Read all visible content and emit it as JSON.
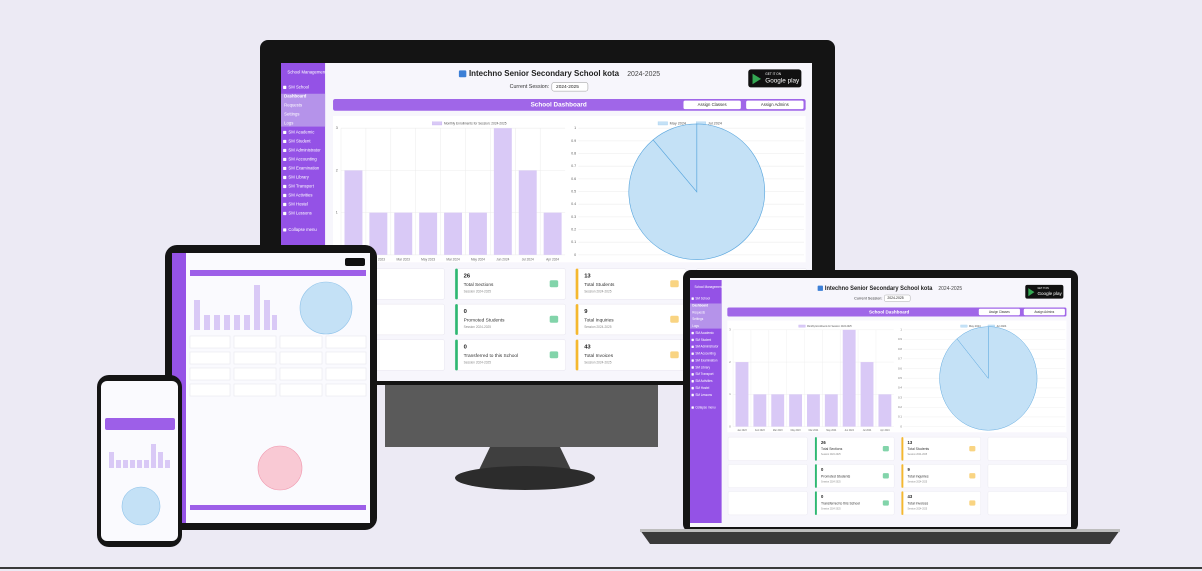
{
  "sidebar": {
    "brand": "School Management",
    "items": [
      "SM School",
      "Dashboard",
      "Requests",
      "Settings",
      "Logs",
      "SM Academic",
      "SM Student",
      "SM Administrator",
      "SM Accounting",
      "SM Examination",
      "SM Library",
      "SM Transport",
      "SM Activities",
      "SM Hostel",
      "SM Lessons",
      "Collapse menu"
    ]
  },
  "header": {
    "title": "Intechno Senior Secondary School kota",
    "session_year": "2024-2025",
    "session_label": "Current Session:",
    "session_value": "2024-2025",
    "store_small": "GET IT ON",
    "store_name": "Google play"
  },
  "dashboard": {
    "title": "School Dashboard",
    "buttons": [
      "Assign Classes",
      "Assign Admins"
    ]
  },
  "chart_data": [
    {
      "type": "bar",
      "categories": [
        "Jan 2023",
        "Feb 2023",
        "Mar 2023",
        "May 2023",
        "Mar 2024",
        "May 2024",
        "Jun 2024",
        "Jul 2024",
        "Apr 2024"
      ],
      "series": [
        {
          "name": "Monthly Enrollments for Session: 2024-2025",
          "color": "#d9c9f6",
          "values": [
            2,
            1,
            1,
            1,
            1,
            1,
            3,
            2,
            1
          ]
        }
      ],
      "ylim": [
        0,
        3
      ],
      "yticks": [
        0,
        1,
        2,
        3
      ],
      "grid": true
    },
    {
      "type": "pie",
      "categories": [
        "May 2024",
        "Jul 2024"
      ],
      "values": [
        8,
        1
      ],
      "colors": [
        "#c4e1f6",
        "#c4e1f6"
      ],
      "ylim": [
        0,
        1
      ],
      "yticks": [
        0,
        0.1,
        0.2,
        0.3,
        0.4,
        0.5,
        0.6,
        0.7,
        0.8,
        0.9,
        1
      ],
      "grid": true
    }
  ],
  "cards": [
    {
      "value": 26,
      "label": "Total Sections",
      "sub": "Session 2024-2025",
      "color": "#2eb872"
    },
    {
      "value": 13,
      "label": "Total Students",
      "sub": "Session 2024-2025",
      "color": "#f5b82e"
    },
    {
      "value": 0,
      "label": "Promoted Students",
      "sub": "Session 2024-2025",
      "color": "#2eb872"
    },
    {
      "value": 9,
      "label": "Total Inquiries",
      "sub": "Session 2024-2025",
      "color": "#f5b82e"
    },
    {
      "value": 0,
      "label": "Transferred to this School",
      "sub": "Session 2024-2025",
      "color": "#2eb872"
    },
    {
      "value": 43,
      "label": "Total Invoices",
      "sub": "Session 2024-2025",
      "color": "#f5b82e"
    }
  ]
}
